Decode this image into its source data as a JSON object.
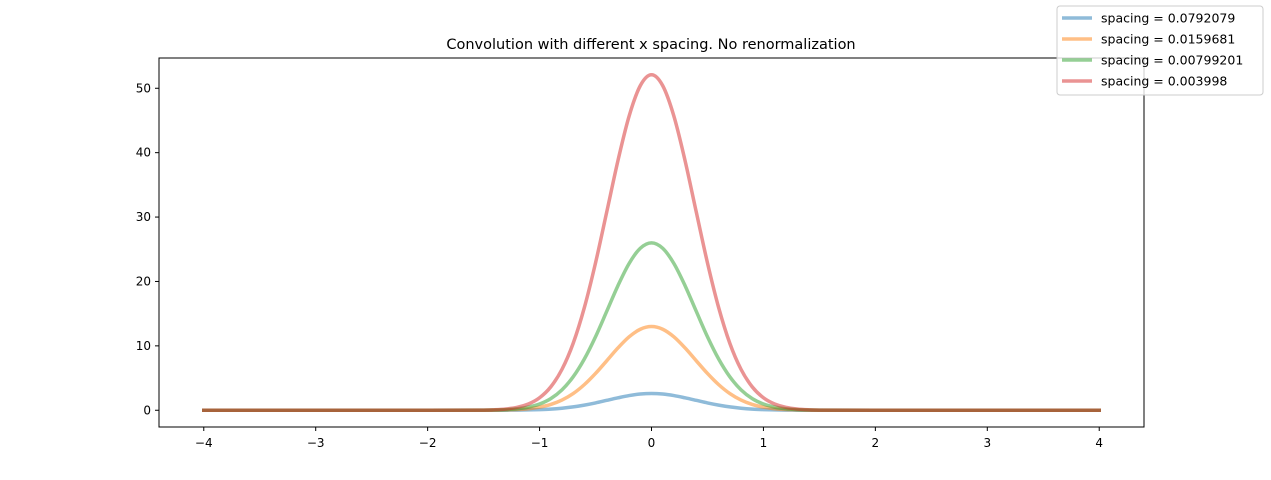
{
  "chart_data": {
    "type": "line",
    "title": "Convolution with different x spacing. No renormalization",
    "xlabel": "",
    "ylabel": "",
    "xlim": [
      -4.4,
      4.4
    ],
    "ylim": [
      -2.6,
      54.7
    ],
    "xticks": [
      -4,
      -3,
      -2,
      -1,
      0,
      1,
      2,
      3,
      4
    ],
    "xtick_labels": [
      "−4",
      "−3",
      "−2",
      "−1",
      "0",
      "1",
      "2",
      "3",
      "4"
    ],
    "yticks": [
      0,
      10,
      20,
      30,
      40,
      50
    ],
    "ytick_labels": [
      "0",
      "10",
      "20",
      "30",
      "40",
      "50"
    ],
    "grid": false,
    "legend_placement": "top-right (outside figure corner)",
    "x": [
      -4,
      -2,
      -1.5,
      -1.4,
      -1.3,
      -1.2,
      -1.1,
      -1.0,
      -0.9,
      -0.8,
      -0.7,
      -0.6,
      -0.5,
      -0.4,
      -0.3,
      -0.2,
      -0.1,
      0,
      0.1,
      0.2,
      0.3,
      0.4,
      0.5,
      0.6,
      0.7,
      0.8,
      0.9,
      1.0,
      1.1,
      1.2,
      1.3,
      1.4,
      1.5,
      2,
      4
    ],
    "series": [
      {
        "name": "spacing = 0.0792079",
        "color": "#1f77b4",
        "values": [
          0,
          0,
          0,
          0,
          0.01,
          0.02,
          0.05,
          0.1,
          0.18,
          0.32,
          0.52,
          0.8,
          1.14,
          1.54,
          1.93,
          2.28,
          2.52,
          2.6,
          2.52,
          2.28,
          1.93,
          1.54,
          1.14,
          0.8,
          0.52,
          0.32,
          0.18,
          0.1,
          0.05,
          0.02,
          0.01,
          0,
          0,
          0,
          0
        ]
      },
      {
        "name": "spacing = 0.0159681",
        "color": "#ff7f0e",
        "values": [
          0,
          0,
          0.01,
          0.02,
          0.05,
          0.11,
          0.24,
          0.48,
          0.9,
          1.58,
          2.59,
          3.98,
          5.71,
          7.68,
          9.67,
          11.4,
          12.58,
          13.0,
          12.58,
          11.4,
          9.67,
          7.68,
          5.71,
          3.98,
          2.59,
          1.58,
          0.9,
          0.48,
          0.24,
          0.11,
          0.05,
          0.02,
          0.01,
          0,
          0
        ]
      },
      {
        "name": "spacing = 0.00799201",
        "color": "#2ca02c",
        "values": [
          0,
          0,
          0.02,
          0.04,
          0.1,
          0.23,
          0.49,
          0.97,
          1.81,
          3.17,
          5.19,
          7.96,
          11.42,
          15.36,
          19.34,
          22.79,
          25.16,
          26.0,
          25.16,
          22.79,
          19.34,
          15.36,
          11.42,
          7.96,
          5.19,
          3.17,
          1.81,
          0.97,
          0.49,
          0.23,
          0.1,
          0.04,
          0.02,
          0,
          0
        ]
      },
      {
        "name": "spacing = 0.003998",
        "color": "#d62728",
        "values": [
          0,
          0,
          0.03,
          0.08,
          0.2,
          0.46,
          0.97,
          1.94,
          3.63,
          6.35,
          10.39,
          15.94,
          22.89,
          30.78,
          38.75,
          45.68,
          50.41,
          52.1,
          50.41,
          45.68,
          38.75,
          30.78,
          22.89,
          15.94,
          10.39,
          6.35,
          3.63,
          1.94,
          0.97,
          0.46,
          0.2,
          0.08,
          0.03,
          0,
          0
        ]
      }
    ]
  }
}
